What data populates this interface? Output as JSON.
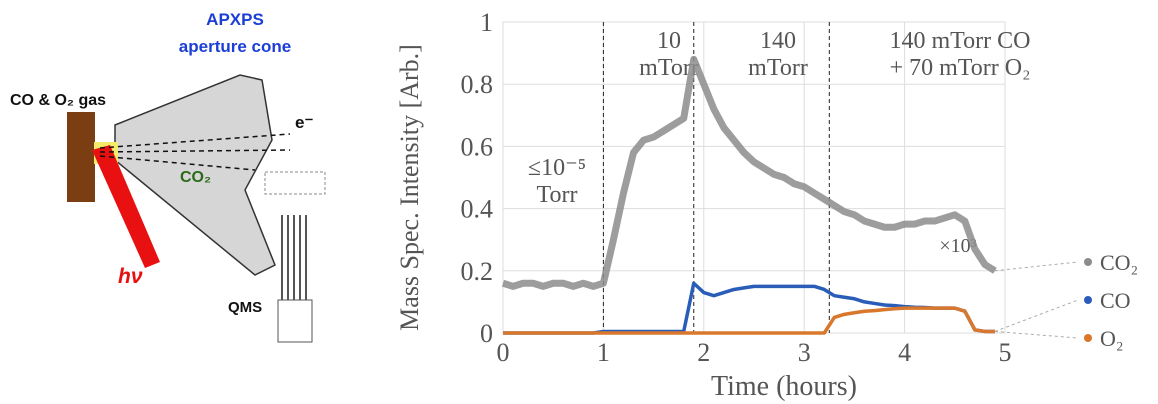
{
  "diagram": {
    "title": "APXPS",
    "subtitle": "aperture cone",
    "gas_label": "CO & O₂ gas",
    "electron_label": "e⁻",
    "product_label": "CO₂",
    "photon_label": "hν",
    "detector_label": "QMS"
  },
  "chart_data": {
    "type": "line",
    "ylabel": "Mass Spec. Intensity [Arb.]",
    "xlabel": "Time (hours)",
    "xlim": [
      0,
      5
    ],
    "xticks": [
      0,
      1,
      2,
      3,
      4,
      5
    ],
    "ylim": [
      0,
      1
    ],
    "yticks": [
      0,
      0.2,
      0.4,
      0.6,
      0.8,
      1
    ],
    "dividers": [
      1,
      1.9,
      3.25
    ],
    "regions": [
      [
        "≤10⁻⁵",
        "Torr"
      ],
      [
        "10",
        "mTorr"
      ],
      [
        "140",
        "mTorr"
      ],
      [
        "140 mTorr CO",
        "+ 70 mTorr O₂"
      ]
    ],
    "annotation": "×10³",
    "x": [
      0,
      0.1,
      0.2,
      0.3,
      0.4,
      0.5,
      0.6,
      0.7,
      0.8,
      0.9,
      1,
      1.1,
      1.2,
      1.3,
      1.4,
      1.5,
      1.6,
      1.7,
      1.8,
      1.9,
      2,
      2.1,
      2.2,
      2.3,
      2.4,
      2.5,
      2.6,
      2.7,
      2.8,
      2.9,
      3,
      3.1,
      3.2,
      3.3,
      3.4,
      3.5,
      3.6,
      3.7,
      3.8,
      3.9,
      4,
      4.1,
      4.2,
      4.3,
      4.4,
      4.5,
      4.6,
      4.7,
      4.8,
      4.9
    ],
    "series": [
      {
        "name": "CO₂",
        "color": "#8c8c8c",
        "values": [
          0.16,
          0.15,
          0.16,
          0.16,
          0.15,
          0.16,
          0.16,
          0.15,
          0.16,
          0.15,
          0.16,
          0.3,
          0.45,
          0.58,
          0.62,
          0.63,
          0.65,
          0.67,
          0.69,
          0.88,
          0.8,
          0.72,
          0.66,
          0.62,
          0.58,
          0.55,
          0.53,
          0.51,
          0.5,
          0.48,
          0.47,
          0.45,
          0.43,
          0.41,
          0.39,
          0.38,
          0.36,
          0.35,
          0.34,
          0.34,
          0.35,
          0.35,
          0.36,
          0.36,
          0.37,
          0.38,
          0.36,
          0.27,
          0.22,
          0.2
        ]
      },
      {
        "name": "CO",
        "color": "#2a5db8",
        "values": [
          0,
          0,
          0,
          0,
          0,
          0,
          0,
          0,
          0,
          0,
          0.005,
          0.005,
          0.005,
          0.005,
          0.005,
          0.005,
          0.005,
          0.005,
          0.005,
          0.16,
          0.13,
          0.12,
          0.13,
          0.14,
          0.145,
          0.15,
          0.15,
          0.15,
          0.15,
          0.15,
          0.15,
          0.15,
          0.14,
          0.12,
          0.115,
          0.11,
          0.1,
          0.095,
          0.09,
          0.088,
          0.085,
          0.083,
          0.082,
          0.08,
          0.08,
          0.08,
          0.07,
          0.01,
          0.005,
          0.005
        ]
      },
      {
        "name": "O₂",
        "color": "#d9782d",
        "values": [
          0,
          0,
          0,
          0,
          0,
          0,
          0,
          0,
          0,
          0,
          0,
          0,
          0,
          0,
          0,
          0,
          0,
          0,
          0,
          0,
          0,
          0,
          0,
          0,
          0,
          0,
          0,
          0,
          0,
          0,
          0,
          0,
          0,
          0.05,
          0.06,
          0.065,
          0.07,
          0.072,
          0.075,
          0.078,
          0.08,
          0.08,
          0.08,
          0.08,
          0.08,
          0.08,
          0.07,
          0.01,
          0.005,
          0.005
        ]
      }
    ]
  }
}
